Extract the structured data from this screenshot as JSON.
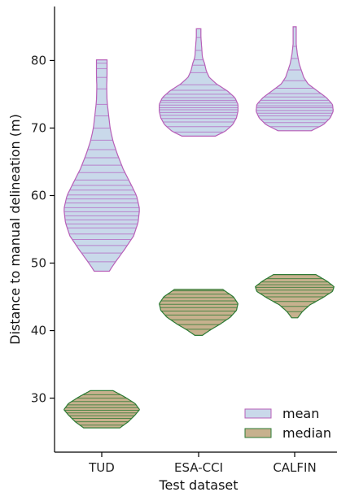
{
  "chart_data": {
    "type": "violin",
    "xlabel": "Test dataset",
    "ylabel": "Distance to manual delineation (m)",
    "ylim": [
      22,
      88
    ],
    "yticks": [
      "30",
      "40",
      "50",
      "60",
      "70",
      "80"
    ],
    "categories": [
      "TUD",
      "ESA-CCI",
      "CALFIN"
    ],
    "colors": {
      "mean_fill": "#c9d9ea",
      "mean_line": "#b85fb8",
      "mean_rule": "#b56bc4",
      "median_fill": "#c7b18e",
      "median_line": "#2e7b35"
    },
    "series": [
      {
        "name": "mean",
        "violins": [
          {
            "category": "TUD",
            "min": 48.8,
            "max": 80.1,
            "profile": [
              [
                48.8,
                0.1
              ],
              [
                50,
                0.17
              ],
              [
                52,
                0.3
              ],
              [
                54,
                0.42
              ],
              [
                56,
                0.48
              ],
              [
                58,
                0.5
              ],
              [
                60,
                0.46
              ],
              [
                62,
                0.37
              ],
              [
                64,
                0.28
              ],
              [
                66,
                0.21
              ],
              [
                68,
                0.15
              ],
              [
                70,
                0.11
              ],
              [
                72,
                0.09
              ],
              [
                74,
                0.07
              ],
              [
                76,
                0.065
              ],
              [
                78,
                0.07
              ],
              [
                80.1,
                0.07
              ]
            ],
            "values": [
              50.2,
              51.5,
              52.6,
              53.5,
              54.3,
              55.2,
              55.8,
              56.4,
              57.0,
              57.6,
              58.2,
              58.9,
              59.5,
              60.1,
              60.8,
              61.5,
              62.3,
              63.4,
              64.5,
              65.6,
              66.8,
              68.2,
              70.0,
              71.8,
              73.5,
              75.8,
              77.5,
              78.8,
              79.6
            ]
          },
          {
            "category": "ESA-CCI",
            "min": 68.8,
            "max": 84.7,
            "profile": [
              [
                68.8,
                0.22
              ],
              [
                69.5,
                0.35
              ],
              [
                70.5,
                0.45
              ],
              [
                71.5,
                0.5
              ],
              [
                72.5,
                0.52
              ],
              [
                73.5,
                0.52
              ],
              [
                74.5,
                0.48
              ],
              [
                75.5,
                0.38
              ],
              [
                76.5,
                0.24
              ],
              [
                77.5,
                0.14
              ],
              [
                78.5,
                0.1
              ],
              [
                79.5,
                0.08
              ],
              [
                80.5,
                0.05
              ],
              [
                82,
                0.04
              ],
              [
                83.5,
                0.03
              ],
              [
                84.7,
                0.03
              ]
            ],
            "values": [
              69.4,
              70.2,
              70.9,
              71.4,
              71.9,
              72.3,
              72.7,
              73.0,
              73.4,
              73.8,
              74.1,
              74.5,
              75.0,
              75.6,
              76.4,
              78.2,
              79.3,
              80.1,
              81.5,
              83.4
            ]
          },
          {
            "category": "CALFIN",
            "min": 69.6,
            "max": 85.0,
            "profile": [
              [
                69.6,
                0.22
              ],
              [
                70.5,
                0.38
              ],
              [
                71.5,
                0.47
              ],
              [
                72.5,
                0.51
              ],
              [
                73.5,
                0.5
              ],
              [
                74.5,
                0.42
              ],
              [
                75.5,
                0.3
              ],
              [
                76.5,
                0.18
              ],
              [
                77.5,
                0.12
              ],
              [
                78.5,
                0.09
              ],
              [
                79.5,
                0.06
              ],
              [
                81,
                0.035
              ],
              [
                82.5,
                0.02
              ],
              [
                84,
                0.02
              ],
              [
                85.0,
                0.02
              ]
            ],
            "values": [
              70.2,
              70.8,
              71.3,
              71.8,
              72.2,
              72.6,
              73.0,
              73.3,
              73.7,
              74.1,
              74.6,
              75.1,
              75.9,
              77.0,
              78.6,
              80.3,
              82.1
            ]
          }
        ]
      },
      {
        "name": "median",
        "violins": [
          {
            "category": "TUD",
            "min": 25.6,
            "max": 31.1,
            "profile": [
              [
                25.6,
                0.24
              ],
              [
                26.5,
                0.35
              ],
              [
                27.5,
                0.44
              ],
              [
                28.3,
                0.5
              ],
              [
                29.2,
                0.44
              ],
              [
                30.2,
                0.3
              ],
              [
                31.1,
                0.15
              ]
            ],
            "values": [
              26.0,
              26.5,
              27.0,
              27.4,
              27.8,
              28.2,
              28.6,
              29.0,
              29.5,
              30.0,
              30.5
            ]
          },
          {
            "category": "ESA-CCI",
            "min": 39.3,
            "max": 46.1,
            "profile": [
              [
                39.3,
                0.05
              ],
              [
                40,
                0.14
              ],
              [
                41,
                0.29
              ],
              [
                42,
                0.42
              ],
              [
                43,
                0.5
              ],
              [
                44,
                0.52
              ],
              [
                45,
                0.46
              ],
              [
                46.1,
                0.32
              ]
            ],
            "values": [
              40.2,
              40.9,
              41.6,
              42.3,
              42.9,
              43.4,
              43.9,
              44.4,
              44.9,
              45.4,
              45.9
            ]
          },
          {
            "category": "CALFIN",
            "min": 41.9,
            "max": 48.3,
            "profile": [
              [
                41.9,
                0.04
              ],
              [
                42.8,
                0.1
              ],
              [
                43.8,
                0.2
              ],
              [
                44.8,
                0.36
              ],
              [
                45.8,
                0.5
              ],
              [
                46.5,
                0.52
              ],
              [
                47.3,
                0.43
              ],
              [
                48.3,
                0.28
              ]
            ],
            "values": [
              42.8,
              43.6,
              44.3,
              45.0,
              45.5,
              46.0,
              46.4,
              46.8,
              47.2,
              47.7
            ]
          }
        ]
      }
    ],
    "legend": {
      "position": "lower-right",
      "entries": [
        "mean",
        "median"
      ]
    }
  }
}
